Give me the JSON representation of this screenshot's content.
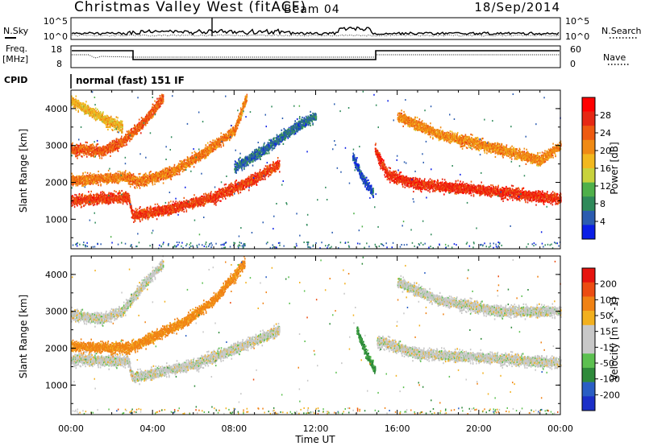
{
  "header": {
    "station": "Christmas Valley West (fitACF)",
    "beam": "Beam 04",
    "date": "18/Sep/2014"
  },
  "strip": {
    "nsky_label": "N.Sky",
    "nsky_ticks": [
      "10^5",
      "10^0"
    ],
    "nsearch_label": "N.Search",
    "nsearch_ticks": [
      "10^5",
      "10^0"
    ],
    "freq_label": [
      "Freq.",
      "[MHz]"
    ],
    "freq_ticks": [
      "18",
      "8"
    ],
    "nave_label": "Nave",
    "nave_ticks": [
      "60",
      "0"
    ],
    "cpid_label": "CPID",
    "cpid_value": "normal (fast) 151 IF"
  },
  "colors": {
    "power_scale": [
      "#0a1ee6",
      "#2b5cb0",
      "#2f8a5a",
      "#4fb04a",
      "#c8d23c",
      "#f2b81e",
      "#f08a14",
      "#ee5a10",
      "#e62814",
      "#ff0000"
    ],
    "velocity_scale": [
      "#1b2fc8",
      "#2a5ec4",
      "#2e8a3a",
      "#5cc050",
      "#c8c8c8",
      "#c8c8c8",
      "#f2b01e",
      "#f08214",
      "#ec4c12",
      "#e6140f"
    ]
  },
  "chart_data": [
    {
      "type": "heatmap",
      "title": "",
      "xlabel": "Time UT",
      "ylabel": "Slant Range [km]",
      "colorbar_label": "Power [dB]",
      "colorbar_ticks": [
        "28",
        "24",
        "20",
        "16",
        "12",
        "8",
        "4"
      ],
      "colorbar_range": [
        0,
        32
      ],
      "xlim": [
        0,
        24
      ],
      "ylim": [
        200,
        4500
      ],
      "x_ticks": [
        "00:00",
        "04:00",
        "08:00",
        "12:00",
        "16:00",
        "20:00",
        "00:00"
      ],
      "y_ticks": [
        "1000",
        "2000",
        "3000",
        "4000"
      ],
      "features": [
        {
          "name": "lower band (morning)",
          "points": [
            [
              0.0,
              1500
            ],
            [
              2.8,
              1600
            ],
            [
              3.0,
              1100
            ],
            [
              5.0,
              1300
            ],
            [
              7.0,
              1600
            ],
            [
              9.0,
              2100
            ],
            [
              10.2,
              2500
            ]
          ],
          "power": 26
        },
        {
          "name": "second band (morning)",
          "points": [
            [
              0.0,
              2050
            ],
            [
              2.8,
              2150
            ],
            [
              3.2,
              2000
            ],
            [
              5.0,
              2300
            ],
            [
              6.5,
              2800
            ],
            [
              8.0,
              3400
            ],
            [
              8.6,
              4300
            ]
          ],
          "power": 22
        },
        {
          "name": "upper band (morning)",
          "points": [
            [
              0.0,
              2900
            ],
            [
              1.5,
              2850
            ],
            [
              2.5,
              3100
            ],
            [
              3.5,
              3600
            ],
            [
              4.5,
              4300
            ]
          ],
          "power": 24
        },
        {
          "name": "top band (morning)",
          "points": [
            [
              0.0,
              4200
            ],
            [
              1.0,
              3900
            ],
            [
              2.0,
              3600
            ],
            [
              2.5,
              3500
            ]
          ],
          "power": 18
        },
        {
          "name": "midday band",
          "points": [
            [
              8.0,
              2400
            ],
            [
              9.5,
              2900
            ],
            [
              11.0,
              3500
            ],
            [
              12.0,
              3800
            ]
          ],
          "power": 6
        },
        {
          "name": "afternoon plume",
          "points": [
            [
              13.8,
              2700
            ],
            [
              14.3,
              2100
            ],
            [
              14.8,
              1700
            ]
          ],
          "power": 4
        },
        {
          "name": "evening band",
          "points": [
            [
              14.9,
              2900
            ],
            [
              15.5,
              2200
            ],
            [
              17.0,
              1950
            ],
            [
              20.0,
              1800
            ],
            [
              24.0,
              1550
            ]
          ],
          "power": 27
        },
        {
          "name": "evening upper band",
          "points": [
            [
              16.0,
              3800
            ],
            [
              18.0,
              3300
            ],
            [
              21.0,
              2900
            ],
            [
              23.0,
              2600
            ],
            [
              24.0,
              3000
            ]
          ],
          "power": 21
        }
      ]
    },
    {
      "type": "heatmap",
      "title": "",
      "xlabel": "Time UT",
      "ylabel": "Slant Range [km]",
      "colorbar_label": "Velocity [m s^-1]",
      "colorbar_ticks": [
        "200",
        "100",
        "50",
        "15",
        "-15",
        "-50",
        "-100",
        "-200"
      ],
      "colorbar_range": [
        -250,
        250
      ],
      "xlim": [
        0,
        24
      ],
      "ylim": [
        200,
        4500
      ],
      "x_ticks": [
        "00:00",
        "04:00",
        "08:00",
        "12:00",
        "16:00",
        "20:00",
        "00:00"
      ],
      "y_ticks": [
        "1000",
        "2000",
        "3000",
        "4000"
      ],
      "features": [
        {
          "name": "lower band (morning)",
          "points": [
            [
              0.0,
              1700
            ],
            [
              2.8,
              1650
            ],
            [
              3.0,
              1200
            ],
            [
              6.0,
              1550
            ],
            [
              9.0,
              2200
            ],
            [
              10.2,
              2500
            ]
          ],
          "velocity": 0
        },
        {
          "name": "second band (morning)",
          "points": [
            [
              0.0,
              2050
            ],
            [
              2.8,
              2000
            ],
            [
              3.2,
              2100
            ],
            [
              5.5,
              2700
            ],
            [
              7.0,
              3300
            ],
            [
              8.5,
              4300
            ]
          ],
          "velocity": -60
        },
        {
          "name": "upper band (morning)",
          "points": [
            [
              0.0,
              2900
            ],
            [
              1.5,
              2800
            ],
            [
              2.5,
              3000
            ],
            [
              3.5,
              3700
            ],
            [
              4.5,
              4300
            ]
          ],
          "velocity": 0
        },
        {
          "name": "afternoon plume",
          "points": [
            [
              14.0,
              2500
            ],
            [
              14.5,
              1800
            ],
            [
              14.9,
              1400
            ]
          ],
          "velocity": 60
        },
        {
          "name": "evening band",
          "points": [
            [
              15.0,
              2200
            ],
            [
              17.0,
              1850
            ],
            [
              20.0,
              1750
            ],
            [
              24.0,
              1600
            ]
          ],
          "velocity": 0
        },
        {
          "name": "evening upper band",
          "points": [
            [
              16.0,
              3800
            ],
            [
              18.0,
              3300
            ],
            [
              21.0,
              3000
            ],
            [
              24.0,
              3000
            ]
          ],
          "velocity": 0
        }
      ]
    }
  ]
}
